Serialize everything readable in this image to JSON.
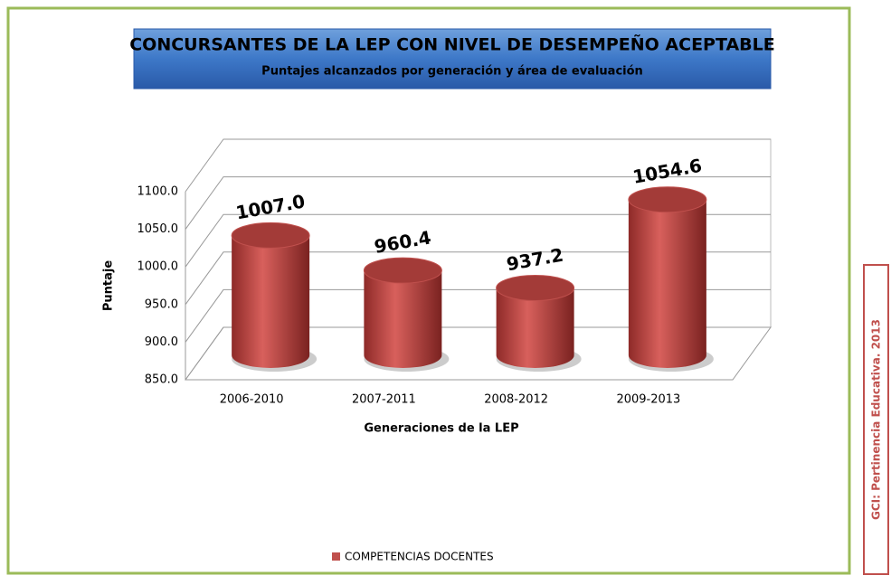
{
  "chart_data": {
    "type": "bar3d",
    "title": "CONCURSANTES DE LA LEP CON NIVEL DE DESEMPEÑO ACEPTABLE",
    "subtitle": "Puntajes alcanzados por generación y área de evaluación",
    "x_label": "Generaciones de la LEP",
    "y_label": "Puntaje",
    "categories": [
      "2006-2010",
      "2007-2011",
      "2008-2012",
      "2009-2013"
    ],
    "series": [
      {
        "name": "COMPETENCIAS DOCENTES",
        "color": "#c0504d",
        "values": [
          1007.0,
          960.4,
          937.2,
          1054.6
        ],
        "value_labels": [
          "1007.0",
          "960.4",
          "937.2",
          "1054.6"
        ]
      }
    ],
    "ylim": [
      850,
      1100
    ],
    "yticks": [
      {
        "value": 850,
        "label": "850.0"
      },
      {
        "value": 900,
        "label": "900.0"
      },
      {
        "value": 950,
        "label": "950.0"
      },
      {
        "value": 1000,
        "label": "1000.0"
      },
      {
        "value": 1050,
        "label": "1050.0"
      },
      {
        "value": 1100,
        "label": "1100.0"
      }
    ],
    "grid": true,
    "legend": "bottom",
    "annotation": "GCI: Pertinencia Educativa. 2013"
  }
}
